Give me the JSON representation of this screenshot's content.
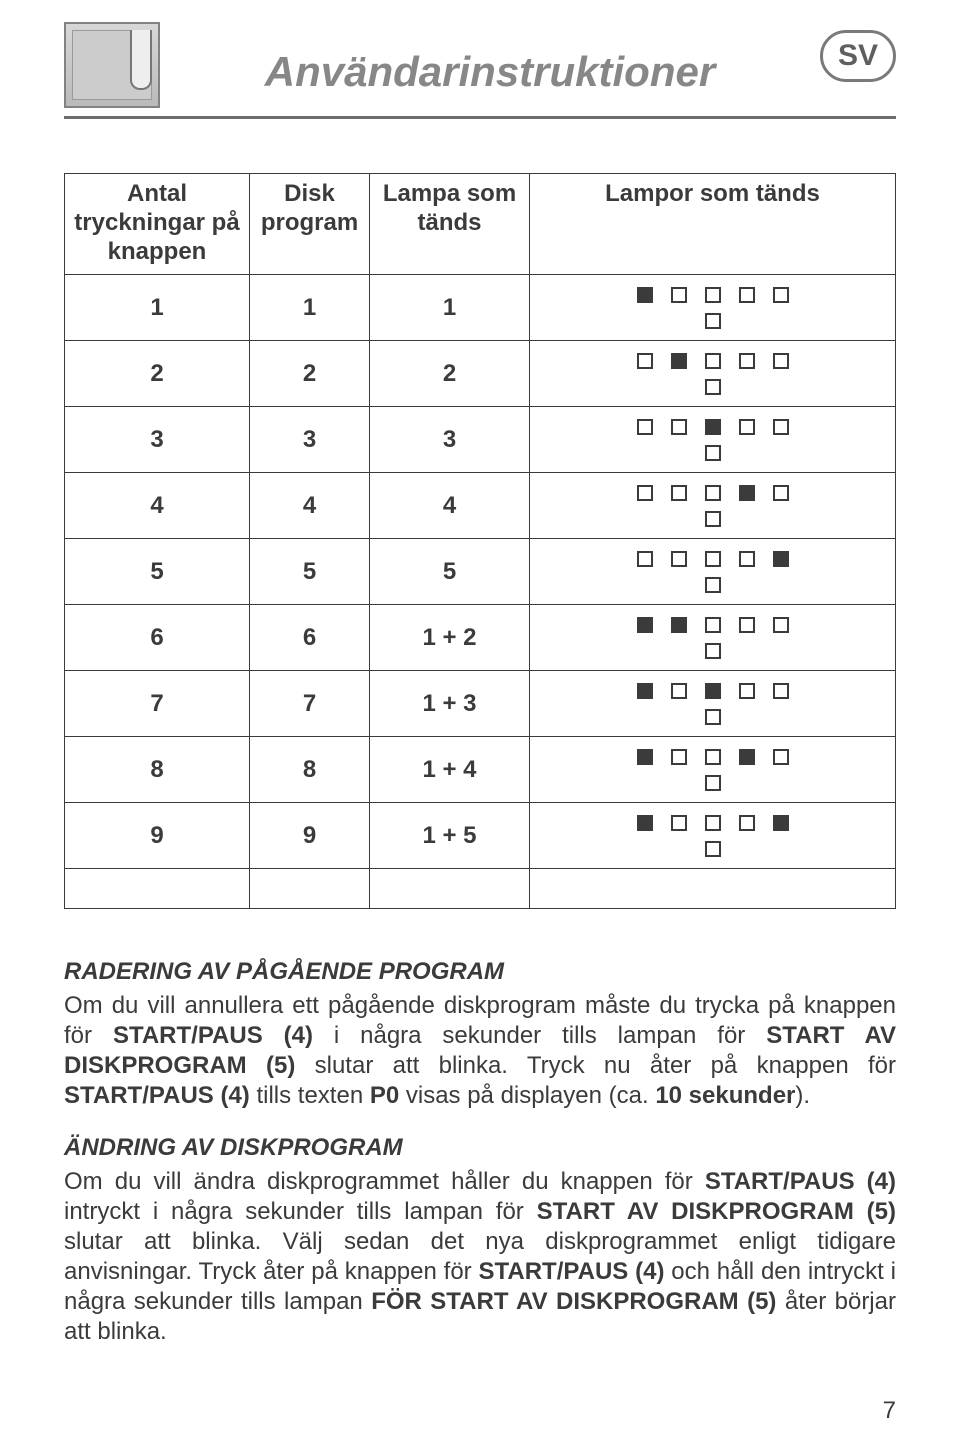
{
  "header": {
    "title": "Användarinstruktioner",
    "lang_badge": "SV",
    "title_color": "#878787",
    "rule_color": "#6d6d6d"
  },
  "table": {
    "columns": [
      "Antal tryckningar på knappen",
      "Disk program",
      "Lampa som tänds",
      "Lampor som tänds"
    ],
    "rows": [
      {
        "presses": "1",
        "program": "1",
        "lamp": "1",
        "lamps_lit": [
          true,
          false,
          false,
          false,
          false
        ]
      },
      {
        "presses": "2",
        "program": "2",
        "lamp": "2",
        "lamps_lit": [
          false,
          true,
          false,
          false,
          false
        ]
      },
      {
        "presses": "3",
        "program": "3",
        "lamp": "3",
        "lamps_lit": [
          false,
          false,
          true,
          false,
          false
        ]
      },
      {
        "presses": "4",
        "program": "4",
        "lamp": "4",
        "lamps_lit": [
          false,
          false,
          false,
          true,
          false
        ]
      },
      {
        "presses": "5",
        "program": "5",
        "lamp": "5",
        "lamps_lit": [
          false,
          false,
          false,
          false,
          true
        ]
      },
      {
        "presses": "6",
        "program": "6",
        "lamp": "1 + 2",
        "lamps_lit": [
          true,
          true,
          false,
          false,
          false
        ]
      },
      {
        "presses": "7",
        "program": "7",
        "lamp": "1 + 3",
        "lamps_lit": [
          true,
          false,
          true,
          false,
          false
        ]
      },
      {
        "presses": "8",
        "program": "8",
        "lamp": "1 + 4",
        "lamps_lit": [
          true,
          false,
          false,
          true,
          false
        ]
      },
      {
        "presses": "9",
        "program": "9",
        "lamp": "1 + 5",
        "lamps_lit": [
          true,
          false,
          false,
          false,
          true
        ]
      }
    ],
    "trailing_empty_row": true,
    "border_color": "#3b3b3b",
    "font_size": 24,
    "lamp_box": {
      "size": 16,
      "border": 2,
      "gap": 18,
      "on_color": "#3b3b3b",
      "off_color": "#ffffff"
    }
  },
  "sections": [
    {
      "heading": "RADERING AV PÅGÅENDE PROGRAM",
      "runs": [
        {
          "t": "Om du vill annullera ett pågående diskprogram måste du trycka på knappen för "
        },
        {
          "t": "START/PAUS (4)",
          "b": true
        },
        {
          "t": " i några sekunder tills lampan för "
        },
        {
          "t": "START AV DISKPROGRAM (5)",
          "b": true
        },
        {
          "t": " slutar att blinka. Tryck nu åter på knappen för "
        },
        {
          "t": "START/PAUS (4)",
          "b": true
        },
        {
          "t": " tills texten "
        },
        {
          "t": "P0",
          "b": true
        },
        {
          "t": " visas på displayen (ca. "
        },
        {
          "t": "10 sekunder",
          "b": true
        },
        {
          "t": ")."
        }
      ]
    },
    {
      "heading": "ÄNDRING AV DISKPROGRAM",
      "runs": [
        {
          "t": "Om du vill ändra diskprogrammet håller du knappen för "
        },
        {
          "t": "START/PAUS (4)",
          "b": true
        },
        {
          "t": " intryckt i några sekunder tills lampan för "
        },
        {
          "t": "START AV DISKPROGRAM (5)",
          "b": true
        },
        {
          "t": " slutar att blinka. Välj sedan det nya diskprogrammet enligt tidigare anvisningar. Tryck åter på knappen för "
        },
        {
          "t": "START/PAUS (4)",
          "b": true
        },
        {
          "t": " och håll den intryckt i några sekunder tills lampan "
        },
        {
          "t": "FÖR START AV DISKPROGRAM (5)",
          "b": true
        },
        {
          "t": " åter börjar att blinka."
        }
      ]
    }
  ],
  "page_number": "7",
  "colors": {
    "text": "#3b3b3b",
    "background": "#ffffff"
  }
}
